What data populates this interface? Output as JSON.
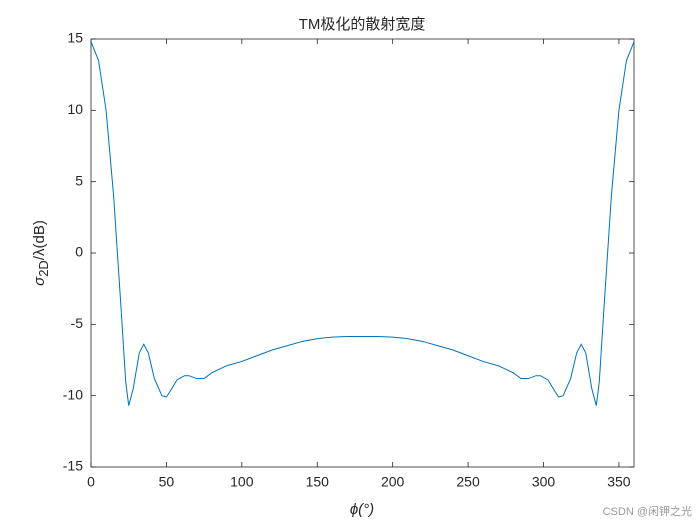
{
  "chart_data": {
    "type": "line",
    "title": "TM极化的散射宽度",
    "x_label": "ϕ(°)",
    "y_label": {
      "base": "σ",
      "sub": "2D",
      "rest": "/λ(dB)"
    },
    "x": [
      0,
      5,
      10,
      15,
      20,
      23,
      25,
      28,
      32,
      35,
      38,
      42,
      47,
      50,
      53,
      57,
      62,
      65,
      70,
      75,
      80,
      90,
      100,
      110,
      120,
      130,
      140,
      150,
      160,
      170,
      180,
      190,
      200,
      210,
      220,
      230,
      240,
      250,
      260,
      270,
      280,
      285,
      290,
      295,
      298,
      303,
      307,
      310,
      313,
      318,
      322,
      325,
      328,
      332,
      335,
      337,
      340,
      345,
      350,
      355,
      360
    ],
    "series": [
      {
        "color": "#0072bd",
        "values": [
          14.8,
          13.5,
          10,
          4,
          -4,
          -9,
          -10.7,
          -9.5,
          -7,
          -6.4,
          -7,
          -8.8,
          -10,
          -10.1,
          -9.6,
          -8.9,
          -8.6,
          -8.6,
          -8.8,
          -8.8,
          -8.4,
          -7.9,
          -7.6,
          -7.2,
          -6.8,
          -6.5,
          -6.2,
          -6.0,
          -5.9,
          -5.85,
          -5.85,
          -5.85,
          -5.9,
          -6.0,
          -6.2,
          -6.5,
          -6.8,
          -7.2,
          -7.6,
          -7.9,
          -8.4,
          -8.8,
          -8.8,
          -8.6,
          -8.6,
          -8.9,
          -9.6,
          -10.1,
          -10,
          -8.8,
          -7,
          -6.4,
          -7,
          -9.5,
          -10.7,
          -9,
          -4,
          4,
          10,
          13.5,
          14.8
        ]
      }
    ],
    "xlim": [
      0,
      360
    ],
    "xticks": [
      0,
      50,
      100,
      150,
      200,
      250,
      300,
      350
    ],
    "ylim": [
      -15,
      15
    ],
    "yticks": [
      -15,
      -10,
      -5,
      0,
      5,
      10,
      15
    ],
    "watermark": "CSDN @闲钾之光"
  }
}
